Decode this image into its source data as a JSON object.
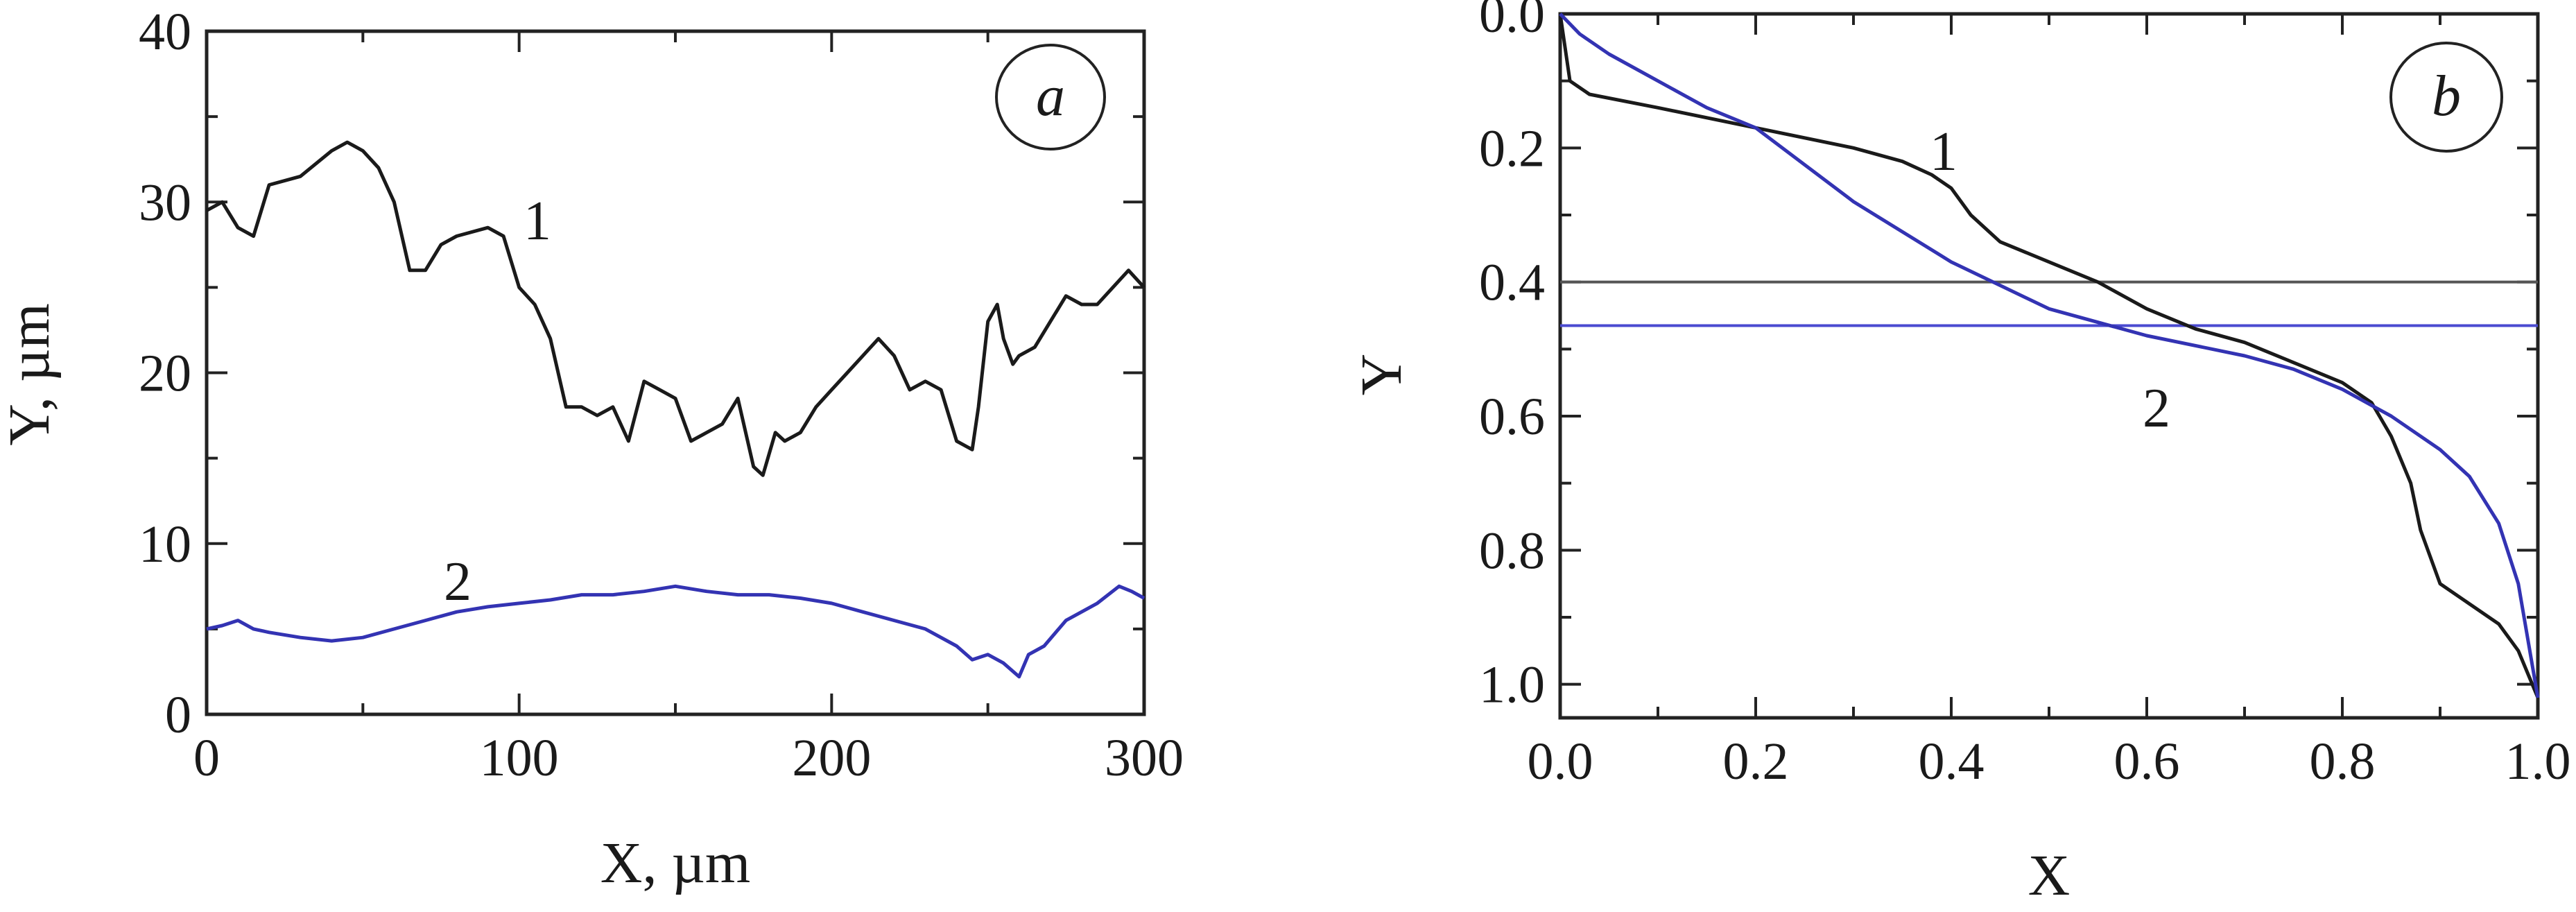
{
  "colors": {
    "series1": "#1a1a1a",
    "series2": "#3333b3",
    "ref1": "#555555",
    "ref2": "#4a4ad0"
  },
  "chart_data": [
    {
      "type": "line",
      "panel_label": "a",
      "xlabel": "X, µm",
      "ylabel": "Y, µm",
      "xlim": [
        0,
        300
      ],
      "ylim": [
        0,
        40
      ],
      "y_inverted": false,
      "xticks": [
        0,
        100,
        200,
        300
      ],
      "xtick_labels": [
        "0",
        "100",
        "200",
        "300"
      ],
      "yticks": [
        0,
        10,
        20,
        30,
        40
      ],
      "ytick_labels": [
        "0",
        "10",
        "20",
        "30",
        "40"
      ],
      "grid": false,
      "series": [
        {
          "name": "1",
          "color": "#1a1a1a",
          "x": [
            0,
            5,
            10,
            15,
            20,
            30,
            40,
            45,
            50,
            55,
            60,
            65,
            70,
            75,
            80,
            90,
            95,
            100,
            105,
            110,
            115,
            120,
            125,
            130,
            135,
            140,
            145,
            150,
            155,
            160,
            165,
            170,
            175,
            178,
            182,
            185,
            190,
            195,
            200,
            205,
            210,
            215,
            220,
            225,
            230,
            235,
            240,
            245,
            247,
            250,
            253,
            255,
            258,
            260,
            265,
            270,
            275,
            280,
            285,
            290,
            295,
            300
          ],
          "y": [
            29.5,
            30,
            28.5,
            28,
            31,
            31.5,
            33,
            33.5,
            33,
            32,
            30,
            26,
            26,
            27.5,
            28,
            28.5,
            28,
            25,
            24,
            22,
            18,
            18,
            17.5,
            18,
            16,
            19.5,
            19,
            18.5,
            16,
            16.5,
            17,
            18.5,
            14.5,
            14,
            16.5,
            16,
            16.5,
            18,
            19,
            20,
            21,
            22,
            21,
            19,
            19.5,
            19,
            16,
            15.5,
            18,
            23,
            24,
            22,
            20.5,
            21,
            21.5,
            23,
            24.5,
            24,
            24,
            25,
            26,
            25
          ]
        },
        {
          "name": "2",
          "color": "#3333b3",
          "x": [
            0,
            5,
            10,
            15,
            20,
            30,
            40,
            50,
            60,
            70,
            80,
            90,
            100,
            110,
            120,
            130,
            140,
            150,
            160,
            170,
            180,
            190,
            200,
            210,
            220,
            230,
            240,
            245,
            250,
            255,
            260,
            263,
            268,
            275,
            285,
            292,
            296,
            300
          ],
          "y": [
            5,
            5.2,
            5.5,
            5,
            4.8,
            4.5,
            4.3,
            4.5,
            5,
            5.5,
            6,
            6.3,
            6.5,
            6.7,
            7,
            7,
            7.2,
            7.5,
            7.2,
            7,
            7,
            6.8,
            6.5,
            6,
            5.5,
            5,
            4,
            3.2,
            3.5,
            3,
            2.2,
            3.5,
            4,
            5.5,
            6.5,
            7.5,
            7.2,
            6.8
          ]
        }
      ]
    },
    {
      "type": "line",
      "panel_label": "b",
      "xlabel": "X",
      "ylabel": "Y",
      "xlim": [
        0,
        1
      ],
      "ylim": [
        0,
        1.05
      ],
      "y_inverted": true,
      "xticks": [
        0,
        0.2,
        0.4,
        0.6,
        0.8,
        1.0
      ],
      "xtick_labels": [
        "0.0",
        "0.2",
        "0.4",
        "0.6",
        "0.8",
        "1.0"
      ],
      "yticks": [
        0,
        0.2,
        0.4,
        0.6,
        0.8,
        1.0
      ],
      "ytick_labels": [
        "0.0",
        "0.2",
        "0.4",
        "0.6",
        "0.8",
        "1.0"
      ],
      "grid": false,
      "hlines": [
        {
          "y": 0.4,
          "color": "#555555"
        },
        {
          "y": 0.465,
          "color": "#4a4ad0"
        }
      ],
      "series": [
        {
          "name": "1",
          "color": "#1a1a1a",
          "x": [
            0.0,
            0.01,
            0.03,
            0.1,
            0.2,
            0.3,
            0.35,
            0.38,
            0.4,
            0.42,
            0.45,
            0.5,
            0.55,
            0.6,
            0.65,
            0.7,
            0.75,
            0.8,
            0.83,
            0.85,
            0.87,
            0.88,
            0.9,
            0.93,
            0.96,
            0.98,
            1.0
          ],
          "y": [
            0.0,
            0.1,
            0.12,
            0.14,
            0.17,
            0.2,
            0.22,
            0.24,
            0.26,
            0.3,
            0.34,
            0.37,
            0.4,
            0.44,
            0.47,
            0.49,
            0.52,
            0.55,
            0.58,
            0.63,
            0.7,
            0.77,
            0.85,
            0.88,
            0.91,
            0.95,
            1.02
          ]
        },
        {
          "name": "2",
          "color": "#3333b3",
          "x": [
            0.0,
            0.02,
            0.05,
            0.1,
            0.15,
            0.2,
            0.3,
            0.4,
            0.5,
            0.6,
            0.7,
            0.75,
            0.8,
            0.85,
            0.9,
            0.93,
            0.96,
            0.98,
            1.0
          ],
          "y": [
            0.0,
            0.03,
            0.06,
            0.1,
            0.14,
            0.17,
            0.28,
            0.37,
            0.44,
            0.48,
            0.51,
            0.53,
            0.56,
            0.6,
            0.65,
            0.69,
            0.76,
            0.85,
            1.02
          ]
        }
      ]
    }
  ]
}
